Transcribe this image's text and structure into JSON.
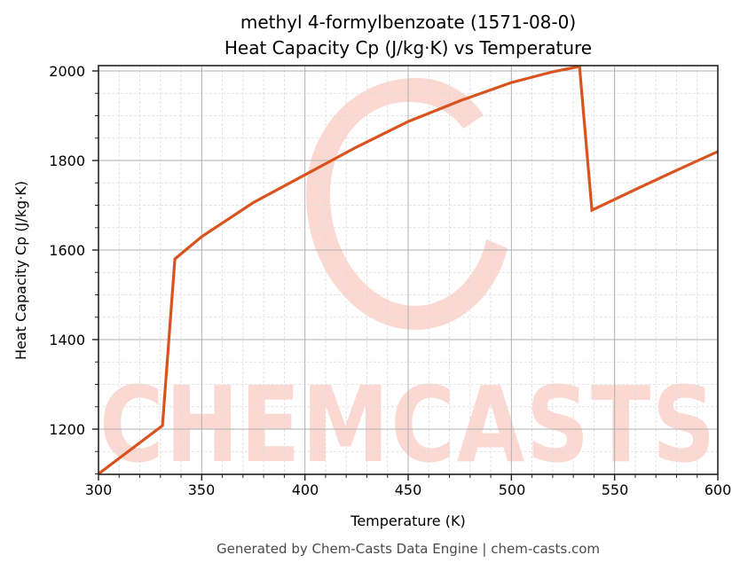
{
  "chart_data": {
    "type": "line",
    "title": "methyl 4-formylbenzoate (1571-08-0)",
    "subtitle": "Heat Capacity Cp (J/kg·K) vs Temperature",
    "xlabel": "Temperature (K)",
    "ylabel": "Heat Capacity Cp (J/kg·K)",
    "xlim": [
      300,
      600
    ],
    "ylim": [
      1100,
      2012
    ],
    "x_ticks": [
      300,
      350,
      400,
      450,
      500,
      550,
      600
    ],
    "y_ticks": [
      1200,
      1400,
      1600,
      1800,
      2000
    ],
    "grid": true,
    "minor_grid": true,
    "legend": null,
    "series": [
      {
        "name": "Heat Capacity Cp",
        "color": "#d9531e",
        "x": [
          300,
          331,
          337,
          350,
          375,
          400,
          425,
          450,
          475,
          500,
          520,
          533,
          539,
          560,
          580,
          600
        ],
        "values": [
          1100,
          1208,
          1580,
          1630,
          1706,
          1768,
          1830,
          1887,
          1933,
          1974,
          1998,
          2010,
          1689,
          1735,
          1778,
          1820
        ]
      }
    ]
  },
  "titles": {
    "line1": "methyl 4-formylbenzoate (1571-08-0)",
    "line2": "Heat Capacity Cp (J/kg·K) vs Temperature"
  },
  "axes": {
    "xlabel": "Temperature (K)",
    "ylabel": "Heat Capacity Cp (J/kg·K)",
    "x_tick_labels": [
      "300",
      "350",
      "400",
      "450",
      "500",
      "550",
      "600"
    ],
    "y_tick_labels": [
      "1200",
      "1400",
      "1600",
      "1800",
      "2000"
    ]
  },
  "watermark": {
    "text": "CHEMCASTS",
    "color": "#fbd9d2"
  },
  "footer": {
    "text": "Generated by Chem-Casts Data Engine | chem-casts.com"
  },
  "colors": {
    "line": "#d9531e",
    "major_grid": "#b0b0b0",
    "minor_grid": "#dcdcdc",
    "axis": "#222222"
  }
}
